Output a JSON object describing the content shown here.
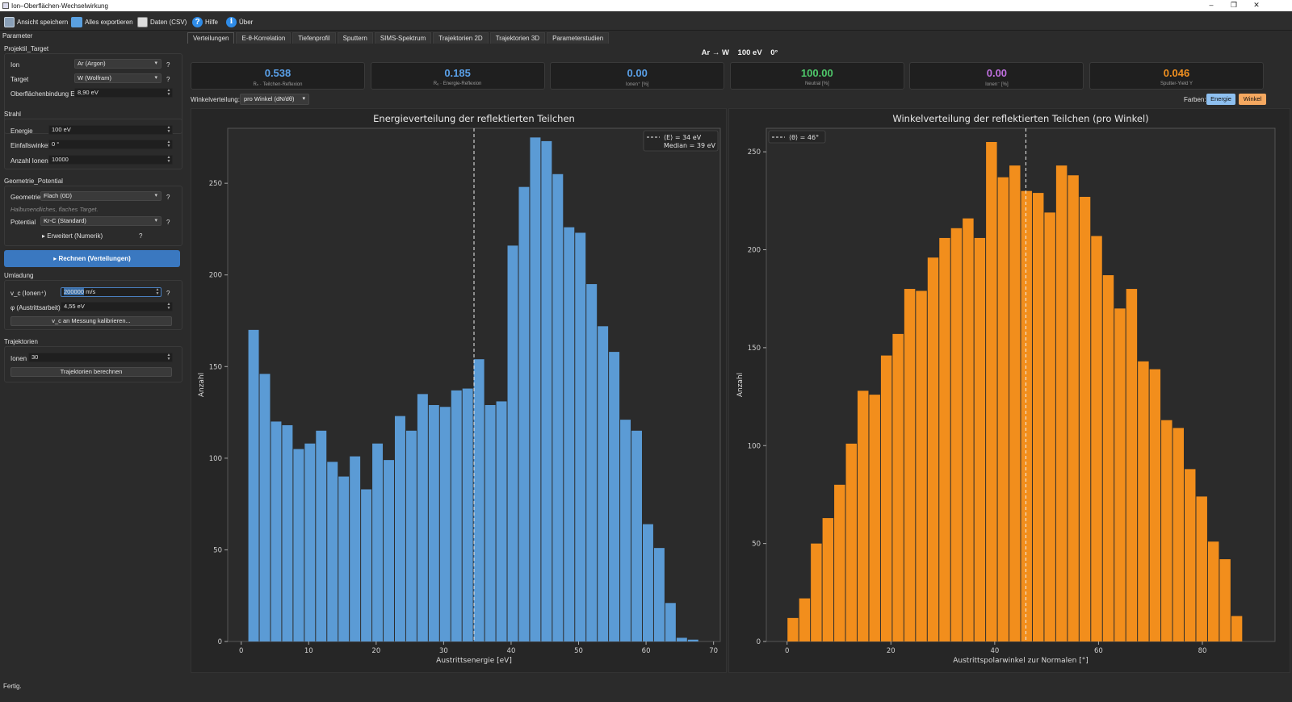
{
  "window": {
    "title": "Ion–Oberflächen-Wechselwirkung"
  },
  "toolbar": {
    "save_view": "Ansicht speichern",
    "export_all": "Alles exportieren",
    "data_csv": "Daten (CSV)",
    "help": "Hilfe",
    "about": "Über"
  },
  "sidebar": {
    "title": "Parameter",
    "projektil": {
      "header": "Projektil_Target",
      "ion_label": "Ion",
      "ion_value": "Ar (Argon)",
      "target_label": "Target",
      "target_value": "W (Wolfram)",
      "es_label": "Oberflächenbindung Es",
      "es_value": "8,90 eV"
    },
    "strahl": {
      "header": "Strahl",
      "energy_label": "Energie",
      "energy_value": "100 eV",
      "angle_label": "Einfallswinkel",
      "angle_value": "0 °",
      "count_label": "Anzahl Ionen",
      "count_value": "10000"
    },
    "geometrie": {
      "header": "Geometrie_Potential",
      "geo_label": "Geometrie",
      "geo_value": "Flach (0D)",
      "hint": "Halbunendliches, flaches Target.",
      "pot_label": "Potential",
      "pot_value": "Kr-C (Standard)",
      "advanced": "Erweitert (Numerik)"
    },
    "compute_button": "▸ Rechnen (Verteilungen)",
    "umladung": {
      "header": "Umladung",
      "vc_label": "v_c (Ionen⁺)",
      "vc_value": "200000",
      "vc_unit": "m/s",
      "phi_label": "φ (Austrittsarbeit)",
      "phi_value": "4,55 eV",
      "calibrate": "v_c an Messung kalibrieren..."
    },
    "trajektorien": {
      "header": "Trajektorien",
      "ions_label": "Ionen",
      "ions_value": "30",
      "compute": "Trajektorien berechnen"
    },
    "help_mark": "?"
  },
  "tabs": [
    "Verteilungen",
    "E-θ-Korrelation",
    "Tiefenprofil",
    "Sputtern",
    "SIMS-Spektrum",
    "Trajektorien 2D",
    "Trajektorien 3D",
    "Parameterstudien"
  ],
  "header": {
    "projectile": "Ar → W",
    "energy": "100 eV",
    "angle": "0°"
  },
  "cards": [
    {
      "value": "0.538",
      "label": "Rₙ · Teilchen-Reflexion",
      "color": "#5aa0e8"
    },
    {
      "value": "0.185",
      "label": "Rₑ · Energie-Reflexion",
      "color": "#5aa0e8"
    },
    {
      "value": "0.00",
      "label": "Ionen⁺ [%]",
      "color": "#5aa0e8"
    },
    {
      "value": "100.00",
      "label": "Neutral [%]",
      "color": "#4ec86a"
    },
    {
      "value": "0.00",
      "label": "Ionen⁻ [%]",
      "color": "#c070e0"
    },
    {
      "value": "0.046",
      "label": "Sputter-Yield Y",
      "color": "#f09020"
    }
  ],
  "controls": {
    "angle_dist_label": "Winkelverteilung:",
    "angle_dist_value": "pro Winkel (dN/dθ)",
    "colors_label": "Farben:",
    "energy_btn": "Energie",
    "angle_btn": "Winkel"
  },
  "chart_data": [
    {
      "type": "bar",
      "title": "Energieverteilung der reflektierten Teilchen",
      "xlabel": "Austrittsenergie [eV]",
      "ylabel": "Anzahl",
      "color": "#5b9bd5",
      "xlim": [
        -2,
        71
      ],
      "ylim": [
        0,
        280
      ],
      "xticks": [
        0,
        10,
        20,
        30,
        40,
        50,
        60,
        70
      ],
      "yticks": [
        0,
        50,
        100,
        150,
        200,
        250
      ],
      "bin_width": 1.67,
      "bin_start": 1.0,
      "values": [
        170,
        146,
        120,
        118,
        105,
        108,
        115,
        98,
        90,
        101,
        83,
        108,
        99,
        123,
        115,
        135,
        129,
        128,
        137,
        138,
        154,
        129,
        131,
        216,
        248,
        275,
        273,
        255,
        226,
        223,
        195,
        172,
        158,
        121,
        115,
        64,
        51,
        21,
        2,
        1
      ],
      "vline": 34.5,
      "legend": [
        "⟨E⟩ = 34 eV",
        "Median = 39 eV"
      ],
      "grid": false,
      "legend_position": "top-right"
    },
    {
      "type": "bar",
      "title": "Winkelverteilung der reflektierten Teilchen (pro Winkel)",
      "xlabel": "Austrittspolarwinkel zur Normalen [°]",
      "ylabel": "Anzahl",
      "color": "#f28e1c",
      "xlim": [
        -4,
        94
      ],
      "ylim": [
        0,
        262
      ],
      "xticks": [
        0,
        20,
        40,
        60,
        80
      ],
      "yticks": [
        0,
        50,
        100,
        150,
        200,
        250
      ],
      "bin_width": 2.25,
      "bin_start": 0,
      "values": [
        12,
        22,
        50,
        63,
        80,
        101,
        128,
        126,
        146,
        157,
        180,
        179,
        196,
        206,
        211,
        216,
        206,
        255,
        237,
        243,
        230,
        229,
        219,
        243,
        238,
        227,
        207,
        187,
        170,
        180,
        143,
        139,
        113,
        109,
        88,
        74,
        51,
        42,
        13
      ],
      "vline": 46,
      "legend": [
        "⟨θ⟩ = 46°"
      ],
      "grid": false,
      "legend_position": "top-left"
    }
  ],
  "status": {
    "text": "Fertig."
  }
}
